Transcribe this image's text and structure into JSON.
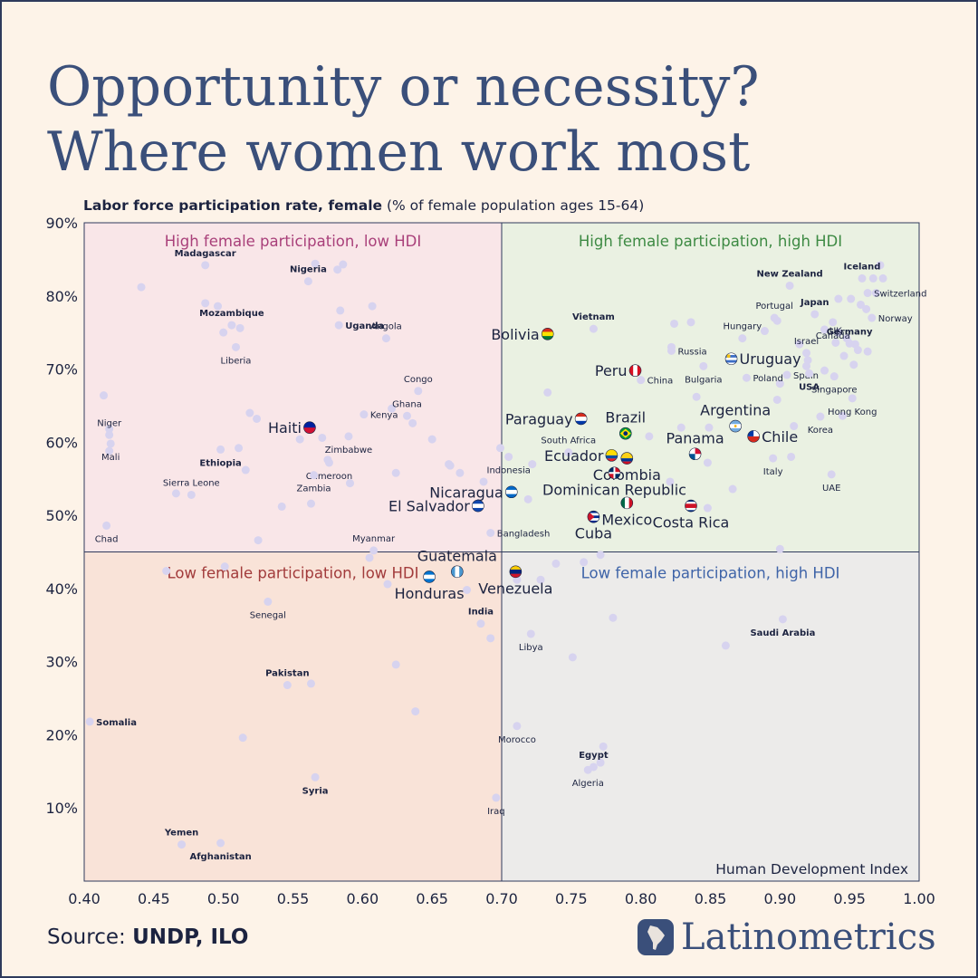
{
  "title": {
    "line1": "Opportunity or necessity?",
    "line2": "Where women work most"
  },
  "colors": {
    "background": "#fdf3e8",
    "title": "#3a4f7a",
    "quadrant_tl": "#f9e6e8",
    "quadrant_tr": "#eaf1e2",
    "quadrant_bl": "#f9e3d8",
    "quadrant_br": "#ecebea",
    "label_tl": "#a9407a",
    "label_tr": "#3d8a43",
    "label_bl": "#a23b3b",
    "label_br": "#3f64a8",
    "dot": "#d7d3ef"
  },
  "chart_data": {
    "type": "scatter",
    "ylabel_bold": "Labor force participation rate, female",
    "ylabel_rest": "(% of female population ages 15-64)",
    "xlabel": "Human Development Index",
    "xlim": [
      0.4,
      1.0
    ],
    "ylim": [
      0,
      90
    ],
    "x_ticks": [
      0.4,
      0.45,
      0.5,
      0.55,
      0.6,
      0.65,
      0.7,
      0.75,
      0.8,
      0.85,
      0.9,
      0.95,
      1.0
    ],
    "x_tick_labels": [
      "0.40",
      "0.45",
      "0.50",
      "0.55",
      "0.60",
      "0.65",
      "0.70",
      "0.75",
      "0.80",
      "0.85",
      "0.90",
      "0.95",
      "1.00"
    ],
    "y_ticks": [
      10,
      20,
      30,
      40,
      50,
      60,
      70,
      80,
      90
    ],
    "y_tick_labels": [
      "10%",
      "20%",
      "30%",
      "40%",
      "50%",
      "60%",
      "70%",
      "80%",
      "90%"
    ],
    "x_split": 0.7,
    "y_split": 45,
    "quadrants": [
      {
        "id": "tl",
        "label": "High female participation, low HDI"
      },
      {
        "id": "tr",
        "label": "High female participation, high HDI"
      },
      {
        "id": "bl",
        "label": "Low female participation, low HDI"
      },
      {
        "id": "br",
        "label": "Low female participation, high HDI"
      }
    ],
    "latam": [
      {
        "name": "Bolivia",
        "x": 0.733,
        "y": 74.8,
        "flag": "bo",
        "pos": "left"
      },
      {
        "name": "Uruguay",
        "x": 0.865,
        "y": 71.4,
        "flag": "uy",
        "pos": "right"
      },
      {
        "name": "Peru",
        "x": 0.796,
        "y": 69.8,
        "flag": "pe",
        "pos": "left"
      },
      {
        "name": "Paraguay",
        "x": 0.757,
        "y": 63.2,
        "flag": "py",
        "pos": "left"
      },
      {
        "name": "Brazil",
        "x": 0.789,
        "y": 61.2,
        "flag": "br",
        "pos": "above"
      },
      {
        "name": "Argentina",
        "x": 0.868,
        "y": 62.2,
        "flag": "ar",
        "pos": "above"
      },
      {
        "name": "Chile",
        "x": 0.881,
        "y": 60.8,
        "flag": "cl",
        "pos": "right"
      },
      {
        "name": "Haiti",
        "x": 0.562,
        "y": 62.0,
        "flag": "ht",
        "pos": "left"
      },
      {
        "name": "Panama",
        "x": 0.839,
        "y": 58.4,
        "flag": "pa",
        "pos": "above"
      },
      {
        "name": "Ecuador",
        "x": 0.779,
        "y": 58.2,
        "flag": "ec",
        "pos": "left"
      },
      {
        "name": "Colombia",
        "x": 0.79,
        "y": 57.8,
        "flag": "co",
        "pos": "below"
      },
      {
        "name": "Dominican Republic",
        "x": 0.781,
        "y": 55.8,
        "flag": "do",
        "pos": "below"
      },
      {
        "name": "Nicaragua",
        "x": 0.707,
        "y": 53.2,
        "flag": "ni",
        "pos": "left"
      },
      {
        "name": "El Salvador",
        "x": 0.683,
        "y": 51.3,
        "flag": "sv",
        "pos": "left"
      },
      {
        "name": "Mexico",
        "x": 0.79,
        "y": 51.7,
        "flag": "mx",
        "pos": "below"
      },
      {
        "name": "Costa Rica",
        "x": 0.836,
        "y": 51.3,
        "flag": "cr",
        "pos": "below"
      },
      {
        "name": "Cuba",
        "x": 0.766,
        "y": 49.8,
        "flag": "cu",
        "pos": "below"
      },
      {
        "name": "Guatemala",
        "x": 0.668,
        "y": 42.3,
        "flag": "gt",
        "pos": "above"
      },
      {
        "name": "Honduras",
        "x": 0.648,
        "y": 41.6,
        "flag": "hn",
        "pos": "below"
      },
      {
        "name": "Venezuela",
        "x": 0.71,
        "y": 42.3,
        "flag": "ve",
        "pos": "below"
      }
    ],
    "countries": [
      {
        "name": "Madagascar",
        "x": 0.487,
        "y": 84.2,
        "bold": true,
        "pos": "above"
      },
      {
        "name": "Nigeria",
        "x": 0.561,
        "y": 82.0,
        "bold": true,
        "pos": "above"
      },
      {
        "name": "Mozambique",
        "x": 0.506,
        "y": 76.0,
        "bold": true,
        "pos": "above"
      },
      {
        "name": "Uganda",
        "x": 0.583,
        "y": 76.0,
        "bold": true,
        "pos": "right"
      },
      {
        "name": "Angola",
        "x": 0.617,
        "y": 74.2,
        "bold": false,
        "pos": "above"
      },
      {
        "name": "Liberia",
        "x": 0.509,
        "y": 73.0,
        "bold": false,
        "pos": "below"
      },
      {
        "name": "Congo",
        "x": 0.64,
        "y": 67.0,
        "bold": false,
        "pos": "above"
      },
      {
        "name": "Ghana",
        "x": 0.632,
        "y": 63.6,
        "bold": false,
        "pos": "above"
      },
      {
        "name": "Kenya",
        "x": 0.601,
        "y": 63.8,
        "bold": false,
        "pos": "right"
      },
      {
        "name": "Niger",
        "x": 0.418,
        "y": 61.0,
        "bold": false,
        "pos": "above"
      },
      {
        "name": "Mali",
        "x": 0.419,
        "y": 59.8,
        "bold": false,
        "pos": "below"
      },
      {
        "name": "Zimbabwe",
        "x": 0.59,
        "y": 60.8,
        "bold": false,
        "pos": "below"
      },
      {
        "name": "Ethiopia",
        "x": 0.498,
        "y": 59.0,
        "bold": true,
        "pos": "below"
      },
      {
        "name": "Cameroon",
        "x": 0.576,
        "y": 57.2,
        "bold": false,
        "pos": "below"
      },
      {
        "name": "Zambia",
        "x": 0.565,
        "y": 55.5,
        "bold": false,
        "pos": "below"
      },
      {
        "name": "Sierra Leone",
        "x": 0.477,
        "y": 52.8,
        "bold": false,
        "pos": "above"
      },
      {
        "name": "Chad",
        "x": 0.416,
        "y": 48.6,
        "bold": false,
        "pos": "below"
      },
      {
        "name": "Myanmar",
        "x": 0.608,
        "y": 45.2,
        "bold": false,
        "pos": "above"
      },
      {
        "name": "Senegal",
        "x": 0.532,
        "y": 38.2,
        "bold": false,
        "pos": "below"
      },
      {
        "name": "India",
        "x": 0.685,
        "y": 35.2,
        "bold": true,
        "pos": "above"
      },
      {
        "name": "Libya",
        "x": 0.721,
        "y": 33.8,
        "bold": false,
        "pos": "below"
      },
      {
        "name": "Pakistan",
        "x": 0.546,
        "y": 26.8,
        "bold": true,
        "pos": "above"
      },
      {
        "name": "Somalia",
        "x": 0.404,
        "y": 21.8,
        "bold": true,
        "pos": "right"
      },
      {
        "name": "Morocco",
        "x": 0.711,
        "y": 21.2,
        "bold": false,
        "pos": "below"
      },
      {
        "name": "Syria",
        "x": 0.566,
        "y": 14.2,
        "bold": true,
        "pos": "below"
      },
      {
        "name": "Iraq",
        "x": 0.696,
        "y": 11.4,
        "bold": false,
        "pos": "below"
      },
      {
        "name": "Yemen",
        "x": 0.47,
        "y": 5.0,
        "bold": true,
        "pos": "above"
      },
      {
        "name": "Afghanistan",
        "x": 0.498,
        "y": 5.2,
        "bold": true,
        "pos": "below"
      },
      {
        "name": "Egypt",
        "x": 0.766,
        "y": 15.6,
        "bold": true,
        "pos": "above"
      },
      {
        "name": "Algeria",
        "x": 0.762,
        "y": 15.2,
        "bold": false,
        "pos": "below"
      },
      {
        "name": "Saudi Arabia",
        "x": 0.902,
        "y": 35.8,
        "bold": true,
        "pos": "below"
      },
      {
        "name": "Bangladesh",
        "x": 0.692,
        "y": 47.6,
        "bold": false,
        "pos": "right"
      },
      {
        "name": "Indonesia",
        "x": 0.705,
        "y": 58.0,
        "bold": false,
        "pos": "below"
      },
      {
        "name": "South Africa",
        "x": 0.748,
        "y": 58.6,
        "bold": false,
        "pos": "above"
      },
      {
        "name": "Vietnam",
        "x": 0.766,
        "y": 75.5,
        "bold": true,
        "pos": "above"
      },
      {
        "name": "China",
        "x": 0.8,
        "y": 68.5,
        "bold": false,
        "pos": "right"
      },
      {
        "name": "Russia",
        "x": 0.822,
        "y": 72.5,
        "bold": false,
        "pos": "right"
      },
      {
        "name": "Bulgaria",
        "x": 0.845,
        "y": 70.4,
        "bold": false,
        "pos": "below"
      },
      {
        "name": "Hungary",
        "x": 0.873,
        "y": 74.2,
        "bold": false,
        "pos": "above"
      },
      {
        "name": "Portugal",
        "x": 0.896,
        "y": 77.0,
        "bold": false,
        "pos": "above"
      },
      {
        "name": "New Zealand",
        "x": 0.907,
        "y": 81.4,
        "bold": true,
        "pos": "above"
      },
      {
        "name": "Japan",
        "x": 0.925,
        "y": 77.5,
        "bold": true,
        "pos": "above"
      },
      {
        "name": "Iceland",
        "x": 0.959,
        "y": 82.4,
        "bold": true,
        "pos": "above"
      },
      {
        "name": "Switzerland",
        "x": 0.963,
        "y": 80.4,
        "bold": false,
        "pos": "right"
      },
      {
        "name": "Canada",
        "x": 0.938,
        "y": 76.4,
        "bold": false,
        "pos": "below"
      },
      {
        "name": "Norway",
        "x": 0.966,
        "y": 77.0,
        "bold": false,
        "pos": "right"
      },
      {
        "name": "UK",
        "x": 0.94,
        "y": 73.6,
        "bold": false,
        "pos": "above"
      },
      {
        "name": "Germany",
        "x": 0.95,
        "y": 73.5,
        "bold": true,
        "pos": "above"
      },
      {
        "name": "Israel",
        "x": 0.919,
        "y": 72.2,
        "bold": false,
        "pos": "above"
      },
      {
        "name": "Spain",
        "x": 0.905,
        "y": 69.2,
        "bold": false,
        "pos": "right"
      },
      {
        "name": "Poland",
        "x": 0.876,
        "y": 68.8,
        "bold": false,
        "pos": "right"
      },
      {
        "name": "Singapore",
        "x": 0.939,
        "y": 69.0,
        "bold": false,
        "pos": "below"
      },
      {
        "name": "USA",
        "x": 0.921,
        "y": 69.4,
        "bold": true,
        "pos": "below"
      },
      {
        "name": "Hong Kong",
        "x": 0.952,
        "y": 66.0,
        "bold": false,
        "pos": "below"
      },
      {
        "name": "Korea",
        "x": 0.929,
        "y": 63.5,
        "bold": false,
        "pos": "below"
      },
      {
        "name": "Italy",
        "x": 0.895,
        "y": 57.8,
        "bold": false,
        "pos": "below"
      },
      {
        "name": "UAE",
        "x": 0.937,
        "y": 55.6,
        "bold": false,
        "pos": "below"
      }
    ],
    "extra_points": [
      [
        0.441,
        81.2
      ],
      [
        0.414,
        66.4
      ],
      [
        0.418,
        61.8
      ],
      [
        0.418,
        58.8
      ],
      [
        0.466,
        53.0
      ],
      [
        0.487,
        79.0
      ],
      [
        0.496,
        78.6
      ],
      [
        0.512,
        75.6
      ],
      [
        0.5,
        75.0
      ],
      [
        0.511,
        59.2
      ],
      [
        0.516,
        56.2
      ],
      [
        0.519,
        64.0
      ],
      [
        0.524,
        63.2
      ],
      [
        0.525,
        46.6
      ],
      [
        0.501,
        43.0
      ],
      [
        0.459,
        42.4
      ],
      [
        0.566,
        84.4
      ],
      [
        0.582,
        83.6
      ],
      [
        0.586,
        84.3
      ],
      [
        0.584,
        78.0
      ],
      [
        0.607,
        78.6
      ],
      [
        0.555,
        60.4
      ],
      [
        0.571,
        60.6
      ],
      [
        0.575,
        57.6
      ],
      [
        0.591,
        54.4
      ],
      [
        0.563,
        51.6
      ],
      [
        0.542,
        51.2
      ],
      [
        0.621,
        64.6
      ],
      [
        0.636,
        62.6
      ],
      [
        0.624,
        55.8
      ],
      [
        0.65,
        60.4
      ],
      [
        0.663,
        56.8
      ],
      [
        0.67,
        55.8
      ],
      [
        0.687,
        54.6
      ],
      [
        0.699,
        59.2
      ],
      [
        0.605,
        44.2
      ],
      [
        0.618,
        40.6
      ],
      [
        0.675,
        39.8
      ],
      [
        0.692,
        33.2
      ],
      [
        0.662,
        57.0
      ],
      [
        0.722,
        57.0
      ],
      [
        0.733,
        66.8
      ],
      [
        0.719,
        52.2
      ],
      [
        0.739,
        43.4
      ],
      [
        0.759,
        43.6
      ],
      [
        0.728,
        41.2
      ],
      [
        0.711,
        41.2
      ],
      [
        0.751,
        30.6
      ],
      [
        0.78,
        36.0
      ],
      [
        0.771,
        44.6
      ],
      [
        0.771,
        16.2
      ],
      [
        0.773,
        18.4
      ],
      [
        0.824,
        76.2
      ],
      [
        0.836,
        76.4
      ],
      [
        0.822,
        73.0
      ],
      [
        0.84,
        66.2
      ],
      [
        0.829,
        62.0
      ],
      [
        0.849,
        62.0
      ],
      [
        0.806,
        60.8
      ],
      [
        0.848,
        57.2
      ],
      [
        0.866,
        53.6
      ],
      [
        0.848,
        51.0
      ],
      [
        0.821,
        54.6
      ],
      [
        0.861,
        32.2
      ],
      [
        0.9,
        45.4
      ],
      [
        0.91,
        62.2
      ],
      [
        0.942,
        79.6
      ],
      [
        0.951,
        79.6
      ],
      [
        0.958,
        78.8
      ],
      [
        0.962,
        78.2
      ],
      [
        0.932,
        75.4
      ],
      [
        0.942,
        75.0
      ],
      [
        0.948,
        74.2
      ],
      [
        0.953,
        70.6
      ],
      [
        0.956,
        72.6
      ],
      [
        0.963,
        72.4
      ],
      [
        0.946,
        71.8
      ],
      [
        0.932,
        69.8
      ],
      [
        0.9,
        68.0
      ],
      [
        0.919,
        70.4
      ],
      [
        0.898,
        65.8
      ],
      [
        0.945,
        63.6
      ],
      [
        0.908,
        58.0
      ],
      [
        0.914,
        73.4
      ],
      [
        0.92,
        71.2
      ],
      [
        0.889,
        75.2
      ],
      [
        0.898,
        76.6
      ],
      [
        0.972,
        84.2
      ],
      [
        0.967,
        82.4
      ],
      [
        0.974,
        82.4
      ],
      [
        0.969,
        80.4
      ],
      [
        0.954,
        73.4
      ],
      [
        0.624,
        29.6
      ],
      [
        0.638,
        23.2
      ],
      [
        0.514,
        19.6
      ],
      [
        0.563,
        27.0
      ]
    ]
  },
  "footer": {
    "source_prefix": "Source: ",
    "source_bold": "UNDP, ILO",
    "brand": "Latinometrics"
  }
}
